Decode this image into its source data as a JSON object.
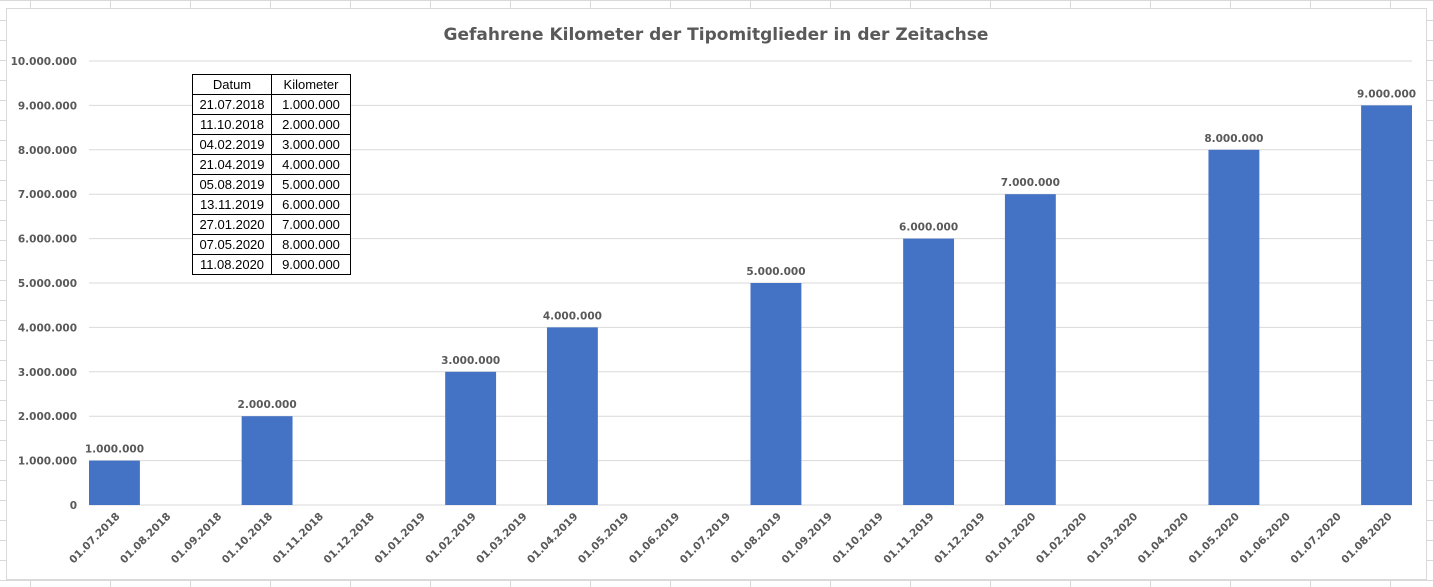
{
  "chart_data": {
    "type": "bar",
    "title": "Gefahrene Kilometer der Tipomitglieder in der Zeitachse",
    "xlabel": "",
    "ylabel": "",
    "ylim": [
      0,
      10000000
    ],
    "yticks": [
      "0",
      "1.000.000",
      "2.000.000",
      "3.000.000",
      "4.000.000",
      "5.000.000",
      "6.000.000",
      "7.000.000",
      "8.000.000",
      "9.000.000",
      "10.000.000"
    ],
    "grid": true,
    "legend": "none",
    "bar_color": "#4472C4",
    "categories": [
      "01.07.2018",
      "01.08.2018",
      "01.09.2018",
      "01.10.2018",
      "01.11.2018",
      "01.12.2018",
      "01.01.2019",
      "01.02.2019",
      "01.03.2019",
      "01.04.2019",
      "01.05.2019",
      "01.06.2019",
      "01.07.2019",
      "01.08.2019",
      "01.09.2019",
      "01.10.2019",
      "01.11.2019",
      "01.12.2019",
      "01.01.2020",
      "01.02.2020",
      "01.03.2020",
      "01.04.2020",
      "01.05.2020",
      "01.06.2020",
      "01.07.2020",
      "01.08.2020"
    ],
    "values": [
      1000000,
      null,
      null,
      2000000,
      null,
      null,
      null,
      3000000,
      null,
      4000000,
      null,
      null,
      null,
      5000000,
      null,
      null,
      6000000,
      null,
      7000000,
      null,
      null,
      null,
      8000000,
      null,
      null,
      9000000
    ],
    "data_labels": [
      "1.000.000",
      "",
      "",
      "2.000.000",
      "",
      "",
      "",
      "3.000.000",
      "",
      "4.000.000",
      "",
      "",
      "",
      "5.000.000",
      "",
      "",
      "6.000.000",
      "",
      "7.000.000",
      "",
      "",
      "",
      "8.000.000",
      "",
      "",
      "9.000.000"
    ]
  },
  "table": {
    "headers": [
      "Datum",
      "Kilometer"
    ],
    "rows": [
      [
        "21.07.2018",
        "1.000.000"
      ],
      [
        "11.10.2018",
        "2.000.000"
      ],
      [
        "04.02.2019",
        "3.000.000"
      ],
      [
        "21.04.2019",
        "4.000.000"
      ],
      [
        "05.08.2019",
        "5.000.000"
      ],
      [
        "13.11.2019",
        "6.000.000"
      ],
      [
        "27.01.2020",
        "7.000.000"
      ],
      [
        "07.05.2020",
        "8.000.000"
      ],
      [
        "11.08.2020",
        "9.000.000"
      ]
    ]
  }
}
